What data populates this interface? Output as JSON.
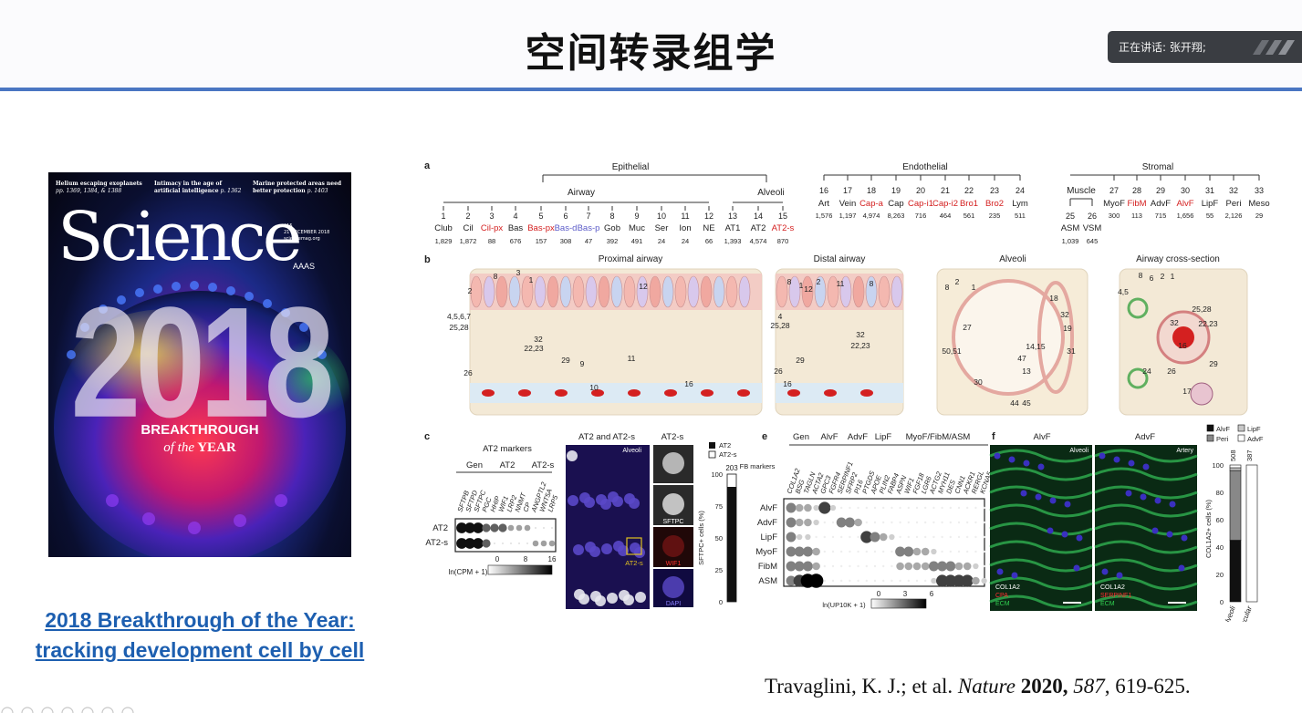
{
  "slide": {
    "title": "空间转录组学",
    "speaker": "正在讲话: 张开翔;"
  },
  "cover": {
    "headline1": "Helium escaping exoplanets",
    "headline1_pages": "pp. 1369, 1384, & 1388",
    "headline2": "Intimacy in the age of artificial intelligence",
    "headline2_pages": "p. 1362",
    "headline3": "Marine protected areas need better protection",
    "headline3_pages": "p. 1403",
    "masthead": "Science",
    "issue": "$15",
    "issue_date": "21 DECEMBER 2018",
    "issue_site": "sciencemag.org",
    "publisher": "AAAS",
    "year": "2018",
    "breakthrough": "BREAKTHROUGH",
    "of_the": "of the",
    "year_word": "YEAR"
  },
  "caption": {
    "line1": "2018 Breakthrough of the Year:",
    "line2": "tracking development cell by cell"
  },
  "citation": {
    "authors": "Travaglini, K. J.; et al. ",
    "journal": "Nature",
    "year": "2020,",
    "volume": "587",
    "pages": ", 619-625."
  },
  "figure": {
    "panel_a": {
      "label": "a",
      "groups": [
        "Epithelial",
        "Endothelial",
        "Stromal"
      ],
      "subgroups": [
        "Airway",
        "Alveoli",
        "Muscle"
      ],
      "epithelial": [
        {
          "n": "1",
          "name": "Club",
          "count": "1,829",
          "color": "#222222"
        },
        {
          "n": "2",
          "name": "Cil",
          "count": "1,872",
          "color": "#222222"
        },
        {
          "n": "3",
          "name": "Cil-px",
          "count": "88",
          "color": "#d42020"
        },
        {
          "n": "4",
          "name": "Bas",
          "count": "676",
          "color": "#222222"
        },
        {
          "n": "5",
          "name": "Bas-px",
          "count": "157",
          "color": "#d42020"
        },
        {
          "n": "6",
          "name": "Bas-d",
          "count": "308",
          "color": "#5b5bc8"
        },
        {
          "n": "7",
          "name": "Bas-p",
          "count": "47",
          "color": "#5b5bc8"
        },
        {
          "n": "8",
          "name": "Gob",
          "count": "392",
          "color": "#222222"
        },
        {
          "n": "9",
          "name": "Muc",
          "count": "491",
          "color": "#222222"
        },
        {
          "n": "10",
          "name": "Ser",
          "count": "24",
          "color": "#222222"
        },
        {
          "n": "11",
          "name": "Ion",
          "count": "24",
          "color": "#222222"
        },
        {
          "n": "12",
          "name": "NE",
          "count": "66",
          "color": "#222222"
        },
        {
          "n": "13",
          "name": "AT1",
          "count": "1,393",
          "color": "#222222"
        },
        {
          "n": "14",
          "name": "AT2",
          "count": "4,574",
          "color": "#222222"
        },
        {
          "n": "15",
          "name": "AT2-s",
          "count": "870",
          "color": "#d42020"
        }
      ],
      "endothelial": [
        {
          "n": "16",
          "name": "Art",
          "count": "1,576",
          "color": "#222222"
        },
        {
          "n": "17",
          "name": "Vein",
          "count": "1,197",
          "color": "#222222"
        },
        {
          "n": "18",
          "name": "Cap-a",
          "count": "4,974",
          "color": "#d42020"
        },
        {
          "n": "19",
          "name": "Cap",
          "count": "8,263",
          "color": "#222222"
        },
        {
          "n": "20",
          "name": "Cap-i1",
          "count": "716",
          "color": "#d42020"
        },
        {
          "n": "21",
          "name": "Cap-i2",
          "count": "464",
          "color": "#d42020"
        },
        {
          "n": "22",
          "name": "Bro1",
          "count": "561",
          "color": "#d42020"
        },
        {
          "n": "23",
          "name": "Bro2",
          "count": "235",
          "color": "#d42020"
        },
        {
          "n": "24",
          "name": "Lym",
          "count": "511",
          "color": "#222222"
        }
      ],
      "muscle": [
        {
          "n": "25",
          "name": "ASM",
          "count": "1,039",
          "color": "#222222"
        },
        {
          "n": "26",
          "name": "VSM",
          "count": "645",
          "color": "#222222"
        }
      ],
      "stromal": [
        {
          "n": "27",
          "name": "MyoF",
          "count": "300",
          "color": "#222222"
        },
        {
          "n": "28",
          "name": "FibM",
          "count": "113",
          "color": "#d42020"
        },
        {
          "n": "29",
          "name": "AdvF",
          "count": "715",
          "color": "#222222"
        },
        {
          "n": "30",
          "name": "AlvF",
          "count": "1,656",
          "color": "#d42020"
        },
        {
          "n": "31",
          "name": "LipF",
          "count": "55",
          "color": "#222222"
        },
        {
          "n": "32",
          "name": "Peri",
          "count": "2,126",
          "color": "#222222"
        },
        {
          "n": "33",
          "name": "Meso",
          "count": "29",
          "color": "#222222"
        }
      ]
    },
    "panel_b": {
      "label": "b",
      "titles": [
        "Proximal airway",
        "Distal airway",
        "Alveoli",
        "Airway cross-section"
      ],
      "numbers": [
        "8",
        "3",
        "1",
        "2",
        "4,5,6,7",
        "25,28",
        "32",
        "22,23",
        "29",
        "26",
        "9",
        "10",
        "11",
        "12",
        "16",
        "8",
        "1",
        "2",
        "12",
        "11",
        "8",
        "4",
        "25,28",
        "32",
        "22,23",
        "29",
        "26",
        "16",
        "8",
        "2",
        "1",
        "27",
        "50,51",
        "30",
        "47",
        "13",
        "44",
        "45",
        "14,15",
        "18",
        "32",
        "19",
        "31",
        "8",
        "6",
        "2",
        "1",
        "4,5",
        "25,28",
        "32",
        "22,23",
        "16",
        "29",
        "24",
        "26",
        "17"
      ]
    },
    "panel_c": {
      "label": "c",
      "title": "AT2 markers",
      "groups": [
        "Gen",
        "AT2",
        "AT2-s"
      ],
      "genes": [
        "SFTPB",
        "SFTPD",
        "SFTPC",
        "PGC",
        "HHIP",
        "WIF1",
        "LRP2",
        "NNMT",
        "CP",
        "ANGPTL2",
        "WNT5A",
        "LRP5"
      ],
      "rows": [
        "AT2",
        "AT2-s"
      ],
      "dots_at2": [
        3,
        3,
        3,
        2,
        2,
        2,
        1,
        1,
        1,
        0,
        0,
        0
      ],
      "dots_at2s": [
        3,
        3,
        3,
        2,
        0,
        0,
        0,
        0,
        0,
        1,
        1,
        1
      ],
      "scale_label": "ln(CPM + 1)",
      "scale_ticks": [
        "0",
        "8",
        "16"
      ]
    },
    "panel_d": {
      "label": "d",
      "title_left": "AT2 and AT2-s",
      "title_right": "AT2-s",
      "corner": "Alveoli",
      "sub_labels": [
        "SFTPC",
        "WIF1",
        "DAPI"
      ],
      "inset_label": "AT2-s",
      "legend": [
        "AT2",
        "AT2-s"
      ],
      "bar_label": "SFTPC+ cells (%)",
      "bar_top": "203",
      "bar_ticks": [
        "100",
        "75",
        "50",
        "25",
        "0"
      ],
      "bar_value": 90
    },
    "panel_e": {
      "label": "e",
      "groups": [
        "Gen",
        "AlvF",
        "AdvF",
        "LipF",
        "MyoF/FibM/ASM"
      ],
      "fb_label": "FB markers",
      "genes": [
        "COL1A2",
        "BSG",
        "TAGLN",
        "ACTA2",
        "GPC3",
        "FGFR4",
        "SERPINF1",
        "SFRP2",
        "PI16",
        "PTGDS",
        "APOE",
        "PLIN2",
        "FABP4",
        "ASPN",
        "WIF1",
        "FGF18",
        "LGR6",
        "ACTG2",
        "MYH11",
        "DES",
        "CNN1",
        "ACKR1",
        "RERGL",
        "KCNA5"
      ],
      "rows": [
        "AlvF",
        "AdvF",
        "LipF",
        "MyoF",
        "FibM",
        "ASM"
      ],
      "scale_label": "ln(UP10K + 1)",
      "scale_ticks": [
        "0",
        "3",
        "6"
      ]
    },
    "panel_f": {
      "label": "f",
      "titles": [
        "AlvF",
        "AdvF"
      ],
      "corners": [
        "Alveoli",
        "Artery"
      ],
      "stain_left": [
        "COL1A2",
        "CPA",
        "ECM"
      ],
      "stain_right": [
        "COL1A2",
        "SERPINF1",
        "ECM"
      ],
      "legend": [
        "AlvF",
        "Peri",
        "LipF",
        "AdvF"
      ],
      "bar_label": "COL1A2+ cells (%)",
      "bar_ticks": [
        "100",
        "80",
        "60",
        "40",
        "20",
        "0"
      ],
      "bars": [
        {
          "name": "Alveoli",
          "n": "508",
          "alvf": 45,
          "peri": 51,
          "lipf": 2,
          "advf": 2
        },
        {
          "name": "Prox. vascular",
          "n": "387",
          "alvf": 0,
          "peri": 0,
          "lipf": 0,
          "advf": 100
        }
      ]
    }
  }
}
